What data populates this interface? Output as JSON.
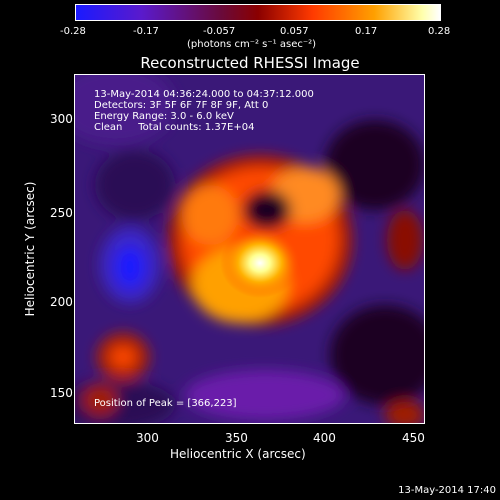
{
  "colorbar": {
    "ticks": [
      "-0.28",
      "-0.17",
      "-0.057",
      "0.057",
      "0.17",
      "0.28"
    ],
    "unit": "(photons cm⁻² s⁻¹ asec⁻²)",
    "colors": [
      "#1a1aff",
      "#7a1acc",
      "#6a0000",
      "#ff3300",
      "#ffa000",
      "#ffffff"
    ]
  },
  "title": "Reconstructed RHESSI Image",
  "info": {
    "line1": "13-May-2014 04:36:24.000 to 04:37:12.000",
    "line2": "Detectors: 3F 5F 6F 7F 8F 9F, Att 0",
    "line3": "Energy Range: 3.0 - 6.0 keV",
    "line4": "Clean     Total counts: 1.37E+04",
    "peak": "Position of Peak = [366,223]"
  },
  "axes": {
    "xlabel": "Heliocentric X (arcsec)",
    "ylabel": "Heliocentric Y (arcsec)",
    "xticks": [
      "300",
      "350",
      "400",
      "450"
    ],
    "yticks": [
      "300",
      "250",
      "200",
      "150"
    ]
  },
  "footer": "13-May-2014 17:40"
}
